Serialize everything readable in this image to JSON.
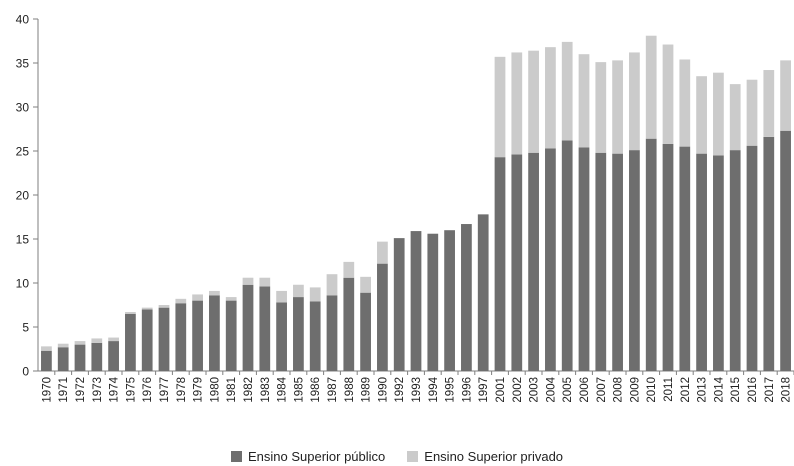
{
  "colors": {
    "public": "#6e6e6e",
    "private": "#cbcbcb",
    "axis": "#7f7f7f"
  },
  "legend": {
    "public_label": "Ensino Superior público",
    "private_label": "Ensino Superior privado"
  },
  "chart_data": {
    "type": "bar",
    "stacked": true,
    "title": "",
    "xlabel": "",
    "ylabel": "",
    "ylim": [
      0,
      40
    ],
    "yticks": [
      0,
      5,
      10,
      15,
      20,
      25,
      30,
      35,
      40
    ],
    "grid": false,
    "legend_position": "bottom",
    "categories": [
      "1970",
      "1971",
      "1972",
      "1973",
      "1974",
      "1975",
      "1976",
      "1977",
      "1978",
      "1979",
      "1980",
      "1981",
      "1982",
      "1983",
      "1984",
      "1985",
      "1986",
      "1987",
      "1988",
      "1989",
      "1990",
      "1992",
      "1993",
      "1994",
      "1995",
      "1996",
      "1997",
      "2001",
      "2002",
      "2003",
      "2004",
      "2005",
      "2006",
      "2007",
      "2008",
      "2009",
      "2010",
      "2011",
      "2012",
      "2013",
      "2014",
      "2015",
      "2016",
      "2017",
      "2018"
    ],
    "series": [
      {
        "name": "Ensino Superior público",
        "values": [
          2.3,
          2.7,
          3.0,
          3.2,
          3.4,
          6.5,
          7.0,
          7.2,
          7.7,
          8.0,
          8.6,
          8.0,
          9.8,
          9.6,
          7.8,
          8.4,
          7.9,
          8.6,
          10.6,
          8.9,
          12.2,
          15.1,
          15.9,
          15.6,
          16.0,
          16.7,
          17.8,
          24.3,
          24.6,
          24.8,
          25.3,
          26.2,
          25.4,
          24.8,
          24.7,
          25.1,
          26.4,
          25.8,
          25.5,
          24.7,
          24.5,
          25.1,
          25.6,
          26.6,
          27.3
        ]
      },
      {
        "name": "Ensino Superior privado",
        "values": [
          0.5,
          0.4,
          0.4,
          0.5,
          0.4,
          0.2,
          0.2,
          0.3,
          0.5,
          0.7,
          0.5,
          0.4,
          0.8,
          1.0,
          1.3,
          1.4,
          1.6,
          2.4,
          1.8,
          1.8,
          2.5,
          0,
          0,
          0,
          0,
          0,
          0,
          11.4,
          11.6,
          11.6,
          11.5,
          11.2,
          10.6,
          10.3,
          10.6,
          11.1,
          11.7,
          11.3,
          9.9,
          8.8,
          9.4,
          7.5,
          7.5,
          7.6,
          8.0
        ]
      }
    ]
  }
}
